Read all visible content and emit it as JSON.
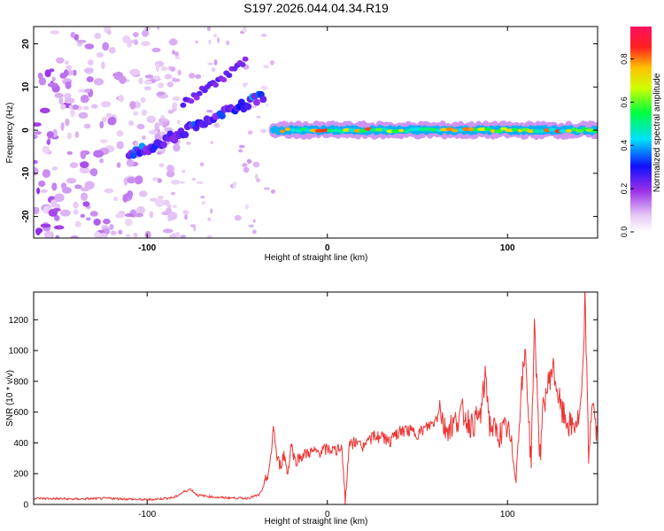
{
  "title": "S197.2026.044.04.34.R19",
  "chart_data": [
    {
      "type": "heatmap",
      "xlabel": "Height of straight line (km)",
      "ylabel": "Frequency (Hz)",
      "xlim": [
        -163,
        150
      ],
      "ylim": [
        -25,
        24
      ],
      "xticks": [
        -100,
        0,
        100
      ],
      "xtick_labels": [
        "-100",
        "0",
        "100"
      ],
      "yticks": [
        -20,
        -10,
        0,
        10,
        20
      ],
      "ytick_labels": [
        "-20",
        "-10",
        "0",
        "10",
        "20"
      ],
      "colorbar": {
        "label": "Normalized spectral amplitude",
        "range": [
          0,
          0.95
        ],
        "ticks": [
          0,
          0.2,
          0.4,
          0.6,
          0.8
        ],
        "tick_labels": [
          "0.0",
          "0.2",
          "0.4",
          "0.6",
          "0.8"
        ]
      },
      "ridge": {
        "rising_segment": {
          "x": [
            -110,
            -35
          ],
          "freq": [
            -6,
            8
          ],
          "amplitude": [
            0.2,
            0.3
          ]
        },
        "upper_branch": {
          "x": [
            -80,
            -45
          ],
          "freq": [
            6,
            16
          ],
          "amplitude": [
            0.2,
            0.25
          ]
        },
        "flat_segment": {
          "x": [
            -30,
            150
          ],
          "freq": [
            -0.5,
            0.5
          ],
          "amplitude_range": [
            0.45,
            0.9
          ]
        }
      }
    },
    {
      "type": "line",
      "xlabel": "Height of straight line (km)",
      "ylabel": "SNR (10 * v/v)",
      "xlim": [
        -163,
        150
      ],
      "ylim": [
        0,
        1380
      ],
      "xticks": [
        -100,
        0,
        100
      ],
      "xtick_labels": [
        "-100",
        "0",
        "100"
      ],
      "yticks": [
        0,
        200,
        400,
        600,
        800,
        1000,
        1200
      ],
      "ytick_labels": [
        "0",
        "200",
        "400",
        "600",
        "800",
        "1000",
        "1200"
      ],
      "series": [
        {
          "name": "SNR",
          "color": "#ee3333",
          "x": [
            -163,
            -140,
            -120,
            -100,
            -85,
            -80,
            -76,
            -72,
            -60,
            -45,
            -38,
            -35,
            -33,
            -31,
            -30,
            -28,
            -26,
            -24,
            -22,
            -20,
            -18,
            -15,
            -10,
            -5,
            0,
            5,
            8,
            10,
            12,
            15,
            20,
            25,
            30,
            35,
            40,
            45,
            50,
            55,
            60,
            62,
            65,
            70,
            75,
            80,
            85,
            88,
            90,
            95,
            100,
            105,
            107,
            110,
            113,
            115,
            118,
            120,
            125,
            130,
            135,
            140,
            142,
            143,
            145,
            147,
            150
          ],
          "values": [
            40,
            35,
            40,
            30,
            45,
            80,
            100,
            60,
            45,
            40,
            60,
            120,
            200,
            310,
            530,
            300,
            250,
            330,
            200,
            400,
            280,
            310,
            340,
            340,
            360,
            350,
            390,
            0,
            380,
            400,
            380,
            440,
            440,
            410,
            470,
            480,
            460,
            500,
            540,
            670,
            490,
            520,
            600,
            510,
            580,
            850,
            520,
            450,
            500,
            200,
            660,
            1000,
            250,
            1180,
            300,
            650,
            900,
            600,
            500,
            550,
            850,
            1380,
            300,
            700,
            400
          ]
        }
      ]
    }
  ]
}
